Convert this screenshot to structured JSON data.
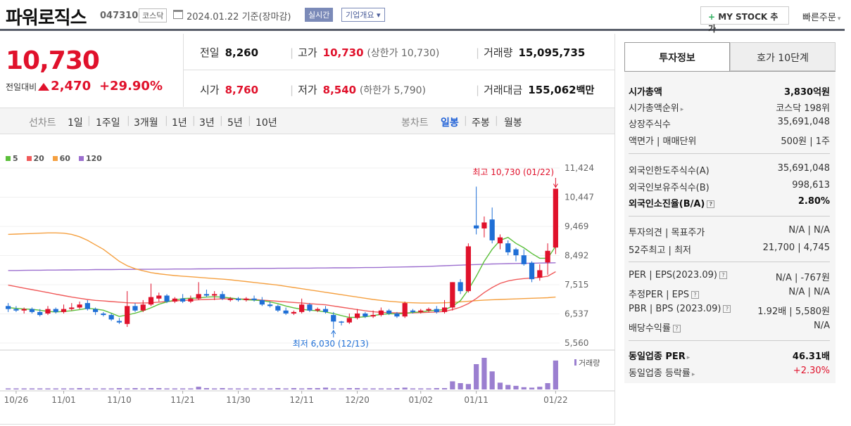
{
  "header": {
    "name": "파워로직스",
    "code": "047310",
    "market": "코스닥",
    "date": "2024.01.22 기준(장마감)",
    "realtime": "실시간",
    "company_info": "기업개요 ▾",
    "mystock": "MY STOCK 추가",
    "quick_order": "빠른주문"
  },
  "price": {
    "current": "10,730",
    "diff_label": "전일대비",
    "diff": "2,470",
    "rate": "+29.90%",
    "prev_label": "전일",
    "prev": "8,260",
    "high_label": "고가",
    "high": "10,730",
    "upper": "(상한가 10,730)",
    "volume_label": "거래량",
    "volume": "15,095,735",
    "open_label": "시가",
    "open": "8,760",
    "low_label": "저가",
    "low": "8,540",
    "lower": "(하한가 5,790)",
    "amount_label": "거래대금",
    "amount": "155,062",
    "amount_unit": "백만"
  },
  "periods": {
    "line_label": "선차트",
    "line": [
      "1일",
      "1주일",
      "3개월",
      "1년",
      "3년",
      "5년",
      "10년"
    ],
    "candle_label": "봉차트",
    "candle": [
      "일봉",
      "주봉",
      "월봉"
    ],
    "active": "일봉"
  },
  "chart_data": {
    "type": "candlestick",
    "legend": [
      {
        "name": "5",
        "color": "#5bbf3a"
      },
      {
        "name": "20",
        "color": "#f05a5a"
      },
      {
        "name": "60",
        "color": "#f5a040"
      },
      {
        "name": "120",
        "color": "#9c6fcf"
      }
    ],
    "y_ticks": [
      "11,424",
      "10,447",
      "9,469",
      "8,492",
      "7,515",
      "6,537",
      "5,560"
    ],
    "x_ticks": [
      "10/26",
      "11/01",
      "11/10",
      "11/21",
      "11/30",
      "12/11",
      "12/20",
      "01/02",
      "01/11",
      "01/22"
    ],
    "high_note": "최고 10,730 (01/22)",
    "low_note": "최저 6,030 (12/13)",
    "volume_label": "거래량",
    "candles": [
      [
        6800,
        6700,
        6900,
        6600
      ],
      [
        6700,
        6650,
        6800,
        6600
      ],
      [
        6650,
        6700,
        6750,
        6550
      ],
      [
        6700,
        6600,
        6750,
        6550
      ],
      [
        6600,
        6500,
        6700,
        6450
      ],
      [
        6550,
        6700,
        6800,
        6500
      ],
      [
        6700,
        6600,
        6750,
        6550
      ],
      [
        6600,
        6700,
        6850,
        6550
      ],
      [
        6700,
        6750,
        6900,
        6650
      ],
      [
        6750,
        6850,
        6950,
        6700
      ],
      [
        6900,
        6700,
        7000,
        6650
      ],
      [
        6700,
        6600,
        6750,
        6500
      ],
      [
        6550,
        6500,
        6600,
        6450
      ],
      [
        6500,
        6350,
        6550,
        6300
      ],
      [
        6300,
        6250,
        6400,
        6200
      ],
      [
        6200,
        6800,
        7300,
        6100
      ],
      [
        6800,
        6650,
        6900,
        6600
      ],
      [
        6650,
        6850,
        7000,
        6600
      ],
      [
        6850,
        7100,
        7550,
        6800
      ],
      [
        7050,
        7150,
        7250,
        6950
      ],
      [
        7150,
        6950,
        7200,
        6900
      ],
      [
        6950,
        7050,
        7100,
        6900
      ],
      [
        7050,
        6950,
        7200,
        6900
      ],
      [
        6950,
        7050,
        7150,
        6900
      ],
      [
        7050,
        7200,
        7600,
        7000
      ],
      [
        7200,
        7150,
        7350,
        7100
      ],
      [
        7150,
        7200,
        7300,
        7000
      ],
      [
        7200,
        7050,
        7300,
        7000
      ],
      [
        7000,
        7050,
        7100,
        6950
      ],
      [
        7050,
        7000,
        7100,
        6950
      ],
      [
        7000,
        7050,
        7100,
        6950
      ],
      [
        7050,
        7000,
        7150,
        6950
      ],
      [
        7000,
        6850,
        7100,
        6800
      ],
      [
        6850,
        6800,
        6950,
        6750
      ],
      [
        6800,
        6650,
        6850,
        6600
      ],
      [
        6650,
        6550,
        6750,
        6500
      ],
      [
        6550,
        6600,
        6650,
        6500
      ],
      [
        6600,
        6850,
        7050,
        6550
      ],
      [
        6850,
        6650,
        6900,
        6600
      ],
      [
        6650,
        6700,
        6750,
        6600
      ],
      [
        6700,
        6600,
        6800,
        6550
      ],
      [
        6500,
        6280,
        6600,
        6030
      ],
      [
        6280,
        6250,
        6300,
        6150
      ],
      [
        6250,
        6400,
        6550,
        6200
      ],
      [
        6400,
        6550,
        6700,
        6350
      ],
      [
        6550,
        6450,
        6600,
        6400
      ],
      [
        6450,
        6500,
        6650,
        6400
      ],
      [
        6500,
        6650,
        6750,
        6450
      ],
      [
        6650,
        6550,
        6700,
        6500
      ],
      [
        6550,
        6450,
        6600,
        6400
      ],
      [
        6450,
        6900,
        6950,
        6400
      ],
      [
        6650,
        6600,
        6700,
        6550
      ],
      [
        6600,
        6650,
        6700,
        6550
      ],
      [
        6650,
        6700,
        6750,
        6600
      ],
      [
        6700,
        6600,
        6800,
        6550
      ],
      [
        6600,
        6750,
        7000,
        6550
      ],
      [
        6750,
        7600,
        7600,
        6650
      ],
      [
        7600,
        7300,
        7700,
        7200
      ],
      [
        7300,
        8800,
        8900,
        7250
      ],
      [
        9500,
        9400,
        10800,
        9200
      ],
      [
        9400,
        9600,
        9800,
        9100
      ],
      [
        9700,
        9000,
        10100,
        8900
      ],
      [
        8900,
        9100,
        9200,
        8700
      ],
      [
        8900,
        8600,
        9000,
        8500
      ],
      [
        8700,
        8500,
        8750,
        8300
      ],
      [
        8500,
        8200,
        8700,
        8150
      ],
      [
        8250,
        7700,
        8300,
        7600
      ],
      [
        7750,
        8000,
        8200,
        7650
      ],
      [
        8260,
        8650,
        8900,
        7850
      ],
      [
        8760,
        10730,
        10730,
        8540
      ]
    ],
    "volume": [
      2,
      2,
      2,
      2,
      2,
      2,
      2,
      2,
      2,
      3,
      2,
      2,
      2,
      2,
      3,
      2,
      3,
      2,
      3,
      3,
      2,
      2,
      2,
      2,
      6,
      3,
      2,
      3,
      2,
      2,
      2,
      2,
      2,
      2,
      3,
      2,
      3,
      2,
      3,
      3,
      4,
      2,
      2,
      3,
      3,
      2,
      2,
      2,
      2,
      3,
      4,
      2,
      2,
      2,
      3,
      3,
      18,
      14,
      12,
      56,
      70,
      40,
      15,
      10,
      8,
      5,
      4,
      6,
      14,
      64
    ],
    "ma5": [
      6750,
      6720,
      6700,
      6690,
      6660,
      6620,
      6600,
      6620,
      6640,
      6680,
      6720,
      6700,
      6660,
      6560,
      6450,
      6500,
      6560,
      6640,
      6740,
      6860,
      6940,
      7000,
      7050,
      7060,
      7070,
      7100,
      7110,
      7100,
      7070,
      7040,
      7010,
      7000,
      6980,
      6940,
      6880,
      6800,
      6740,
      6690,
      6660,
      6640,
      6600,
      6550,
      6480,
      6420,
      6420,
      6440,
      6480,
      6520,
      6540,
      6540,
      6550,
      6590,
      6600,
      6640,
      6660,
      6680,
      6790,
      6980,
      7350,
      7800,
      8300,
      8700,
      9000,
      9100,
      8900,
      8750,
      8560,
      8400,
      8400,
      8800
    ],
    "ma20": [
      7500,
      7450,
      7400,
      7350,
      7300,
      7250,
      7200,
      7150,
      7100,
      7060,
      7020,
      6990,
      6970,
      6950,
      6930,
      6910,
      6900,
      6900,
      6910,
      6930,
      6950,
      6970,
      6990,
      7000,
      7010,
      7020,
      7030,
      7040,
      7040,
      7040,
      7030,
      7020,
      7000,
      6980,
      6960,
      6940,
      6920,
      6900,
      6880,
      6860,
      6840,
      6800,
      6760,
      6720,
      6680,
      6640,
      6610,
      6590,
      6580,
      6570,
      6570,
      6570,
      6580,
      6590,
      6600,
      6620,
      6680,
      6760,
      6880,
      7050,
      7250,
      7420,
      7560,
      7640,
      7690,
      7720,
      7740,
      7760,
      7800,
      7950
    ],
    "ma60": [
      9200,
      9210,
      9220,
      9230,
      9240,
      9250,
      9250,
      9240,
      9200,
      9120,
      9000,
      8850,
      8700,
      8500,
      8300,
      8150,
      8050,
      7980,
      7920,
      7880,
      7850,
      7820,
      7800,
      7780,
      7760,
      7740,
      7720,
      7700,
      7680,
      7650,
      7620,
      7590,
      7560,
      7530,
      7500,
      7460,
      7420,
      7380,
      7340,
      7300,
      7260,
      7220,
      7180,
      7140,
      7100,
      7060,
      7020,
      6990,
      6960,
      6940,
      6920,
      6910,
      6900,
      6900,
      6900,
      6910,
      6920,
      6940,
      6960,
      6980,
      7000,
      7010,
      7020,
      7030,
      7040,
      7050,
      7060,
      7070,
      7080,
      7100
    ],
    "ma120": [
      7990,
      7990,
      7995,
      8000,
      8000,
      8005,
      8005,
      8010,
      8010,
      8015,
      8015,
      8020,
      8020,
      8020,
      8025,
      8025,
      8030,
      8030,
      8030,
      8035,
      8035,
      8040,
      8040,
      8040,
      8045,
      8045,
      8050,
      8050,
      8050,
      8055,
      8055,
      8060,
      8060,
      8060,
      8065,
      8065,
      8070,
      8070,
      8070,
      8075,
      8075,
      8080,
      8080,
      8080,
      8085,
      8090,
      8090,
      8095,
      8100,
      8105,
      8110,
      8115,
      8120,
      8130,
      8140,
      8150,
      8160,
      8170,
      8180,
      8190,
      8200,
      8210,
      8215,
      8220,
      8225,
      8230,
      8235,
      8240,
      8245,
      8250
    ]
  },
  "info": {
    "tab_active": "투자정보",
    "tab_other": "호가 10단계",
    "rows": [
      {
        "k": "시가총액",
        "v": "3,830억원",
        "bold": true
      },
      {
        "k": "시가총액순위",
        "v": "코스닥 198위",
        "arrow": true
      },
      {
        "k": "상장주식수",
        "v": "35,691,048"
      },
      {
        "k": "액면가 | 매매단위",
        "v": "500원 | 1주"
      },
      {
        "k": "외국인한도주식수(A)",
        "v": "35,691,048"
      },
      {
        "k": "외국인보유주식수(B)",
        "v": "998,613"
      },
      {
        "k": "외국인소진율(B/A)",
        "v": "2.80%",
        "bold": true,
        "q": true
      },
      {
        "k": "투자의견 | 목표주가",
        "v": "N/A | N/A"
      },
      {
        "k": "52주최고 | 최저",
        "v": "21,700 | 4,745"
      },
      {
        "k": "PER | EPS(2023.09)",
        "v": "N/A | -767원",
        "q": true
      },
      {
        "k": "추정PER | EPS",
        "v": "N/A | N/A",
        "q": true
      },
      {
        "k": "PBR | BPS (2023.09)",
        "v": "1.92배 | 5,580원",
        "q": true
      },
      {
        "k": "배당수익률",
        "v": "N/A",
        "q": true
      },
      {
        "k": "동일업종 PER",
        "v": "46.31배",
        "bold": true,
        "arrow": true
      },
      {
        "k": "동일업종 등락률",
        "v": "+2.30%",
        "red": true,
        "arrow": true
      }
    ]
  }
}
